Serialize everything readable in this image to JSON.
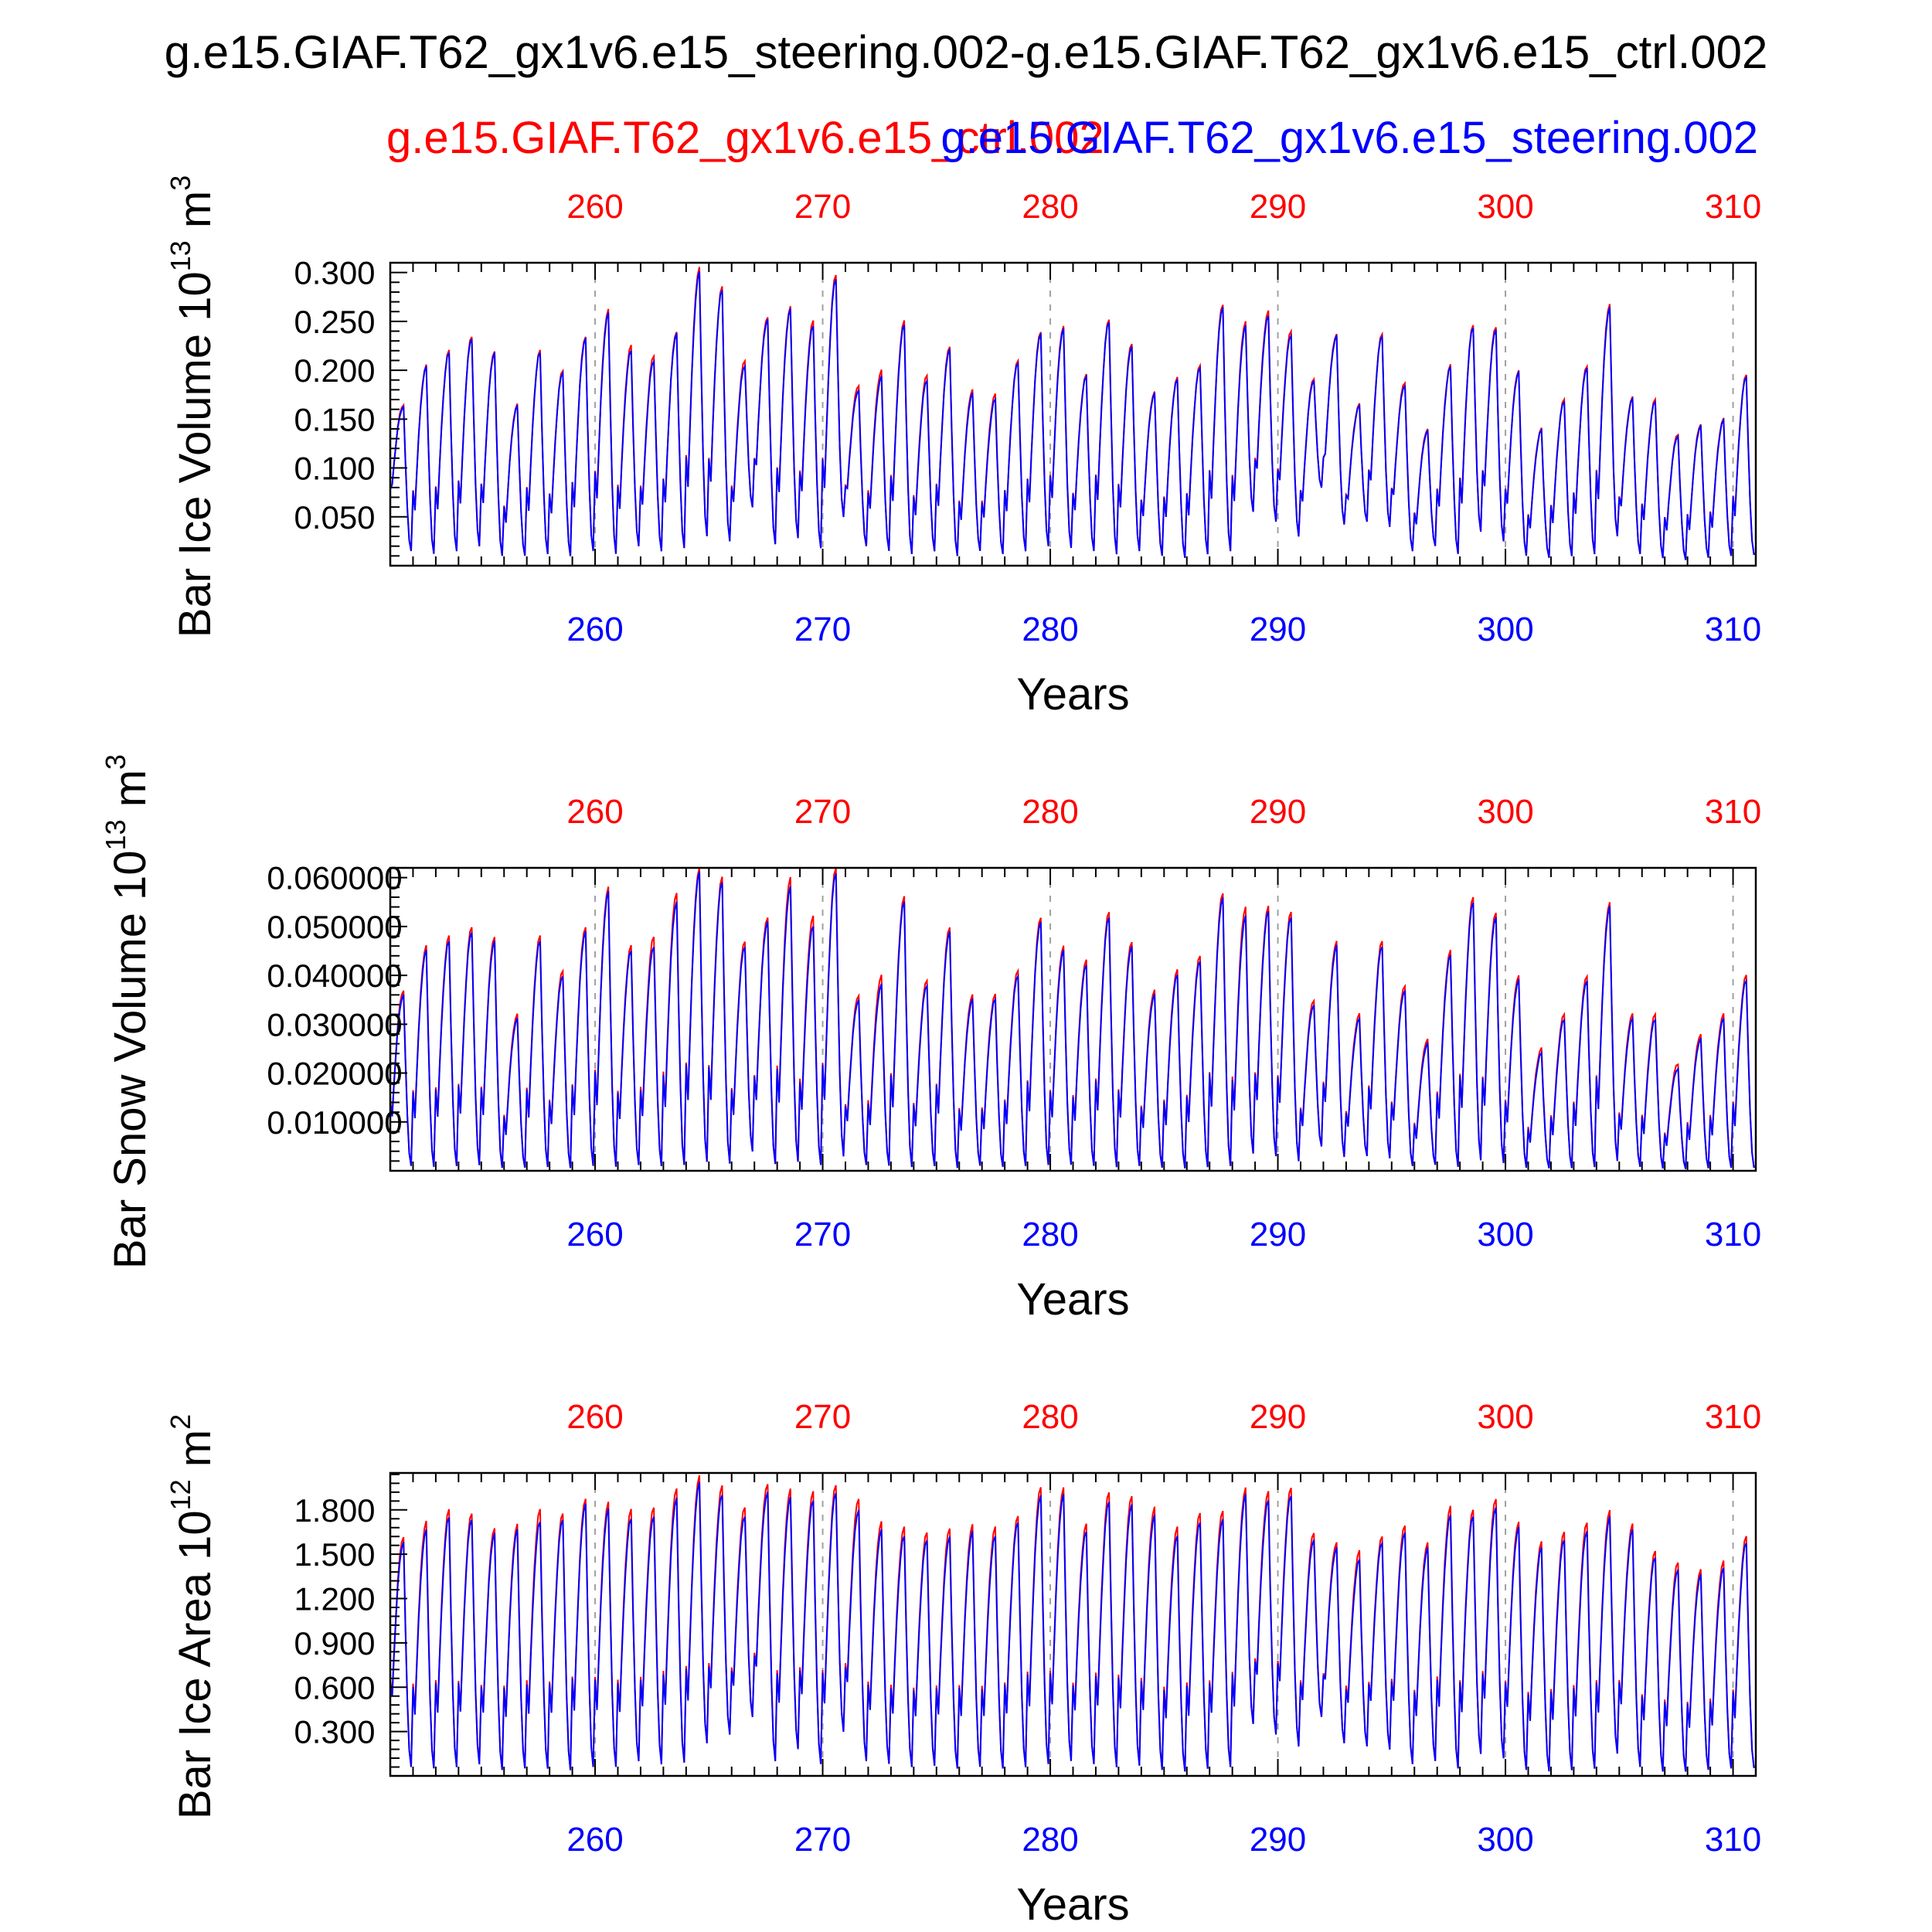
{
  "figure": {
    "title": "g.e15.GIAF.T62_gx1v6.e15_steering.002-g.e15.GIAF.T62_gx1v6.e15_ctrl.002",
    "legend_ctrl": "g.e15.GIAF.T62_gx1v6.e15_ctrl.002",
    "legend_steering": "g.e15.GIAF.T62_gx1v6.e15_steering.002",
    "colors": {
      "ctrl": "#ff0000",
      "steering": "#0000ff",
      "axis": "#000000",
      "grid": "#a0a0a0"
    }
  },
  "chart_data": [
    {
      "type": "line",
      "title": "",
      "xlabel": "Years",
      "ylabel_prefix": "Bar Ice Volume 10",
      "ylabel_exp": "13",
      "ylabel_unit": "m",
      "ylabel_unit_exp": "3",
      "xlim": [
        251,
        311
      ],
      "ylim": [
        0,
        0.31
      ],
      "x_ticks": [
        "260",
        "270",
        "280",
        "290",
        "300",
        "310"
      ],
      "y_ticks": [
        "0.050",
        "0.100",
        "0.150",
        "0.200",
        "0.250",
        "0.300"
      ],
      "x_tick_values": [
        260,
        270,
        280,
        290,
        300,
        310
      ],
      "y_tick_values": [
        0.05,
        0.1,
        0.15,
        0.2,
        0.25,
        0.3
      ],
      "series": [
        {
          "name": "g.e15.GIAF.T62_gx1v6.e15_ctrl.002",
          "color": "#ff0000",
          "annual_max": [
            0.165,
            0.205,
            0.22,
            0.235,
            0.22,
            0.165,
            0.22,
            0.2,
            0.235,
            0.262,
            0.225,
            0.215,
            0.24,
            0.305,
            0.285,
            0.21,
            0.255,
            0.265,
            0.25,
            0.298,
            0.185,
            0.2,
            0.25,
            0.195,
            0.225,
            0.18,
            0.175,
            0.21,
            0.24,
            0.245,
            0.195,
            0.252,
            0.228,
            0.178,
            0.192,
            0.205,
            0.268,
            0.25,
            0.26,
            0.24,
            0.192,
            0.237,
            0.165,
            0.237,
            0.188,
            0.14,
            0.205,
            0.246,
            0.245,
            0.2,
            0.14,
            0.17,
            0.205,
            0.268,
            0.172,
            0.17,
            0.135,
            0.145,
            0.15,
            0.195
          ],
          "annual_min": [
            0.015,
            0.012,
            0.015,
            0.02,
            0.01,
            0.01,
            0.012,
            0.01,
            0.015,
            0.012,
            0.02,
            0.015,
            0.018,
            0.03,
            0.025,
            0.06,
            0.022,
            0.028,
            0.018,
            0.05,
            0.02,
            0.015,
            0.012,
            0.015,
            0.01,
            0.015,
            0.012,
            0.015,
            0.02,
            0.018,
            0.015,
            0.012,
            0.015,
            0.01,
            0.008,
            0.012,
            0.015,
            0.055,
            0.045,
            0.03,
            0.08,
            0.042,
            0.045,
            0.04,
            0.015,
            0.02,
            0.012,
            0.035,
            0.025,
            0.01,
            0.008,
            0.01,
            0.012,
            0.03,
            0.012,
            0.008,
            0.006,
            0.008,
            0.01,
            0.012
          ]
        },
        {
          "name": "g.e15.GIAF.T62_gx1v6.e15_steering.002",
          "color": "#0000ff",
          "annual_max": [
            0.163,
            0.203,
            0.218,
            0.233,
            0.218,
            0.163,
            0.218,
            0.198,
            0.233,
            0.258,
            0.22,
            0.21,
            0.238,
            0.3,
            0.282,
            0.205,
            0.252,
            0.262,
            0.245,
            0.294,
            0.18,
            0.193,
            0.246,
            0.19,
            0.222,
            0.176,
            0.17,
            0.208,
            0.238,
            0.242,
            0.193,
            0.25,
            0.225,
            0.176,
            0.19,
            0.203,
            0.265,
            0.245,
            0.255,
            0.236,
            0.19,
            0.235,
            0.163,
            0.235,
            0.185,
            0.138,
            0.203,
            0.244,
            0.242,
            0.198,
            0.138,
            0.168,
            0.203,
            0.264,
            0.17,
            0.168,
            0.133,
            0.143,
            0.148,
            0.193
          ],
          "annual_min": [
            0.015,
            0.012,
            0.015,
            0.02,
            0.01,
            0.01,
            0.012,
            0.01,
            0.015,
            0.012,
            0.02,
            0.015,
            0.018,
            0.03,
            0.025,
            0.06,
            0.022,
            0.028,
            0.018,
            0.05,
            0.02,
            0.015,
            0.012,
            0.015,
            0.01,
            0.015,
            0.012,
            0.015,
            0.02,
            0.018,
            0.015,
            0.012,
            0.015,
            0.01,
            0.008,
            0.012,
            0.015,
            0.055,
            0.045,
            0.03,
            0.08,
            0.042,
            0.045,
            0.04,
            0.015,
            0.02,
            0.012,
            0.035,
            0.025,
            0.01,
            0.008,
            0.01,
            0.012,
            0.03,
            0.012,
            0.008,
            0.006,
            0.008,
            0.01,
            0.012
          ]
        }
      ]
    },
    {
      "type": "line",
      "title": "",
      "xlabel": "Years",
      "ylabel_prefix": "Bar Snow Volume 10",
      "ylabel_exp": "13",
      "ylabel_unit": "m",
      "ylabel_unit_exp": "3",
      "xlim": [
        251,
        311
      ],
      "ylim": [
        0,
        0.062
      ],
      "x_ticks": [
        "260",
        "270",
        "280",
        "290",
        "300",
        "310"
      ],
      "y_ticks": [
        "0.010000",
        "0.020000",
        "0.030000",
        "0.040000",
        "0.050000",
        "0.060000"
      ],
      "x_tick_values": [
        260,
        270,
        280,
        290,
        300,
        310
      ],
      "y_tick_values": [
        0.01,
        0.02,
        0.03,
        0.04,
        0.05,
        0.06
      ],
      "series": [
        {
          "name": "g.e15.GIAF.T62_gx1v6.e15_ctrl.002",
          "color": "#ff0000",
          "annual_max": [
            0.037,
            0.046,
            0.048,
            0.05,
            0.048,
            0.032,
            0.048,
            0.041,
            0.05,
            0.058,
            0.046,
            0.048,
            0.057,
            0.062,
            0.06,
            0.047,
            0.052,
            0.06,
            0.052,
            0.062,
            0.036,
            0.04,
            0.056,
            0.039,
            0.05,
            0.036,
            0.036,
            0.041,
            0.052,
            0.046,
            0.043,
            0.053,
            0.047,
            0.037,
            0.041,
            0.044,
            0.057,
            0.054,
            0.054,
            0.053,
            0.035,
            0.047,
            0.032,
            0.047,
            0.038,
            0.027,
            0.045,
            0.056,
            0.053,
            0.04,
            0.025,
            0.032,
            0.04,
            0.055,
            0.032,
            0.032,
            0.022,
            0.028,
            0.032,
            0.04
          ],
          "annual_min": [
            0.001,
            0.0008,
            0.001,
            0.0012,
            0.0006,
            0.0006,
            0.0008,
            0.0006,
            0.001,
            0.0008,
            0.0012,
            0.001,
            0.0012,
            0.0018,
            0.0015,
            0.004,
            0.0014,
            0.0018,
            0.0012,
            0.003,
            0.0012,
            0.001,
            0.0008,
            0.001,
            0.0006,
            0.001,
            0.0008,
            0.001,
            0.0012,
            0.0012,
            0.001,
            0.0008,
            0.001,
            0.0006,
            0.0005,
            0.0008,
            0.001,
            0.0035,
            0.003,
            0.002,
            0.005,
            0.0028,
            0.003,
            0.0026,
            0.001,
            0.0012,
            0.0008,
            0.0022,
            0.0016,
            0.0006,
            0.0005,
            0.0006,
            0.0008,
            0.002,
            0.0008,
            0.0005,
            0.0004,
            0.0005,
            0.0006,
            0.0008
          ]
        },
        {
          "name": "g.e15.GIAF.T62_gx1v6.e15_steering.002",
          "color": "#0000ff",
          "annual_max": [
            0.036,
            0.045,
            0.047,
            0.049,
            0.047,
            0.031,
            0.047,
            0.04,
            0.049,
            0.057,
            0.045,
            0.046,
            0.055,
            0.061,
            0.059,
            0.046,
            0.051,
            0.058,
            0.05,
            0.061,
            0.035,
            0.038,
            0.055,
            0.038,
            0.049,
            0.035,
            0.035,
            0.04,
            0.051,
            0.045,
            0.042,
            0.052,
            0.046,
            0.036,
            0.04,
            0.043,
            0.056,
            0.052,
            0.053,
            0.052,
            0.034,
            0.046,
            0.031,
            0.046,
            0.037,
            0.026,
            0.044,
            0.055,
            0.052,
            0.039,
            0.024,
            0.031,
            0.039,
            0.054,
            0.031,
            0.031,
            0.021,
            0.027,
            0.031,
            0.039
          ],
          "annual_min": [
            0.001,
            0.0008,
            0.001,
            0.0012,
            0.0006,
            0.0006,
            0.0008,
            0.0006,
            0.001,
            0.0008,
            0.0012,
            0.001,
            0.0012,
            0.0018,
            0.0015,
            0.004,
            0.0014,
            0.0018,
            0.0012,
            0.003,
            0.0012,
            0.001,
            0.0008,
            0.001,
            0.0006,
            0.001,
            0.0008,
            0.001,
            0.0012,
            0.0012,
            0.001,
            0.0008,
            0.001,
            0.0006,
            0.0005,
            0.0008,
            0.001,
            0.0035,
            0.003,
            0.002,
            0.005,
            0.0028,
            0.003,
            0.0026,
            0.001,
            0.0012,
            0.0008,
            0.0022,
            0.0016,
            0.0006,
            0.0005,
            0.0006,
            0.0008,
            0.002,
            0.0008,
            0.0005,
            0.0004,
            0.0005,
            0.0006,
            0.0008
          ]
        }
      ]
    },
    {
      "type": "line",
      "title": "",
      "xlabel": "Years",
      "ylabel_prefix": "Bar Ice Area 10",
      "ylabel_exp": "12",
      "ylabel_unit": "m",
      "ylabel_unit_exp": "2",
      "xlim": [
        251,
        311
      ],
      "ylim": [
        0,
        2.05
      ],
      "x_ticks": [
        "260",
        "270",
        "280",
        "290",
        "300",
        "310"
      ],
      "y_ticks": [
        "0.300",
        "0.600",
        "0.900",
        "1.200",
        "1.500",
        "1.800"
      ],
      "x_tick_values": [
        260,
        270,
        280,
        290,
        300,
        310
      ],
      "y_tick_values": [
        0.3,
        0.6,
        0.9,
        1.2,
        1.5,
        1.8
      ],
      "series": [
        {
          "name": "g.e15.GIAF.T62_gx1v6.e15_ctrl.002",
          "color": "#ff0000",
          "annual_max": [
            1.62,
            1.72,
            1.8,
            1.78,
            1.68,
            1.7,
            1.8,
            1.78,
            1.88,
            1.85,
            1.8,
            1.82,
            1.95,
            2.03,
            1.96,
            1.82,
            1.98,
            1.94,
            1.92,
            1.97,
            1.88,
            1.72,
            1.68,
            1.65,
            1.68,
            1.7,
            1.68,
            1.76,
            1.96,
            1.95,
            1.7,
            1.92,
            1.9,
            1.82,
            1.68,
            1.78,
            1.8,
            1.95,
            1.92,
            1.95,
            1.65,
            1.58,
            1.52,
            1.62,
            1.7,
            1.58,
            1.82,
            1.8,
            1.88,
            1.72,
            1.58,
            1.65,
            1.72,
            1.8,
            1.7,
            1.52,
            1.45,
            1.4,
            1.45,
            1.62
          ],
          "annual_min": [
            0.06,
            0.05,
            0.06,
            0.08,
            0.04,
            0.05,
            0.05,
            0.04,
            0.06,
            0.06,
            0.1,
            0.08,
            0.09,
            0.22,
            0.28,
            0.4,
            0.1,
            0.18,
            0.08,
            0.3,
            0.1,
            0.08,
            0.06,
            0.07,
            0.05,
            0.06,
            0.05,
            0.06,
            0.08,
            0.1,
            0.08,
            0.06,
            0.07,
            0.04,
            0.03,
            0.05,
            0.06,
            0.35,
            0.28,
            0.2,
            0.4,
            0.22,
            0.2,
            0.18,
            0.08,
            0.1,
            0.05,
            0.15,
            0.12,
            0.04,
            0.03,
            0.04,
            0.05,
            0.15,
            0.06,
            0.03,
            0.03,
            0.04,
            0.05,
            0.06
          ]
        },
        {
          "name": "g.e15.GIAF.T62_gx1v6.e15_steering.002",
          "color": "#0000ff",
          "annual_max": [
            1.58,
            1.66,
            1.75,
            1.74,
            1.64,
            1.66,
            1.72,
            1.74,
            1.84,
            1.8,
            1.74,
            1.76,
            1.88,
            1.98,
            1.9,
            1.76,
            1.92,
            1.88,
            1.86,
            1.92,
            1.8,
            1.66,
            1.62,
            1.6,
            1.62,
            1.65,
            1.62,
            1.72,
            1.9,
            1.9,
            1.65,
            1.86,
            1.84,
            1.76,
            1.62,
            1.72,
            1.74,
            1.9,
            1.86,
            1.9,
            1.6,
            1.54,
            1.46,
            1.58,
            1.65,
            1.54,
            1.76,
            1.76,
            1.82,
            1.68,
            1.54,
            1.6,
            1.66,
            1.75,
            1.66,
            1.48,
            1.4,
            1.36,
            1.4,
            1.58
          ],
          "annual_min": [
            0.06,
            0.05,
            0.06,
            0.08,
            0.04,
            0.05,
            0.05,
            0.04,
            0.06,
            0.06,
            0.1,
            0.08,
            0.09,
            0.22,
            0.28,
            0.4,
            0.1,
            0.18,
            0.08,
            0.3,
            0.1,
            0.08,
            0.06,
            0.07,
            0.05,
            0.06,
            0.05,
            0.06,
            0.08,
            0.1,
            0.08,
            0.06,
            0.07,
            0.04,
            0.03,
            0.05,
            0.06,
            0.35,
            0.28,
            0.2,
            0.4,
            0.22,
            0.2,
            0.18,
            0.08,
            0.1,
            0.05,
            0.15,
            0.12,
            0.04,
            0.03,
            0.04,
            0.05,
            0.15,
            0.06,
            0.03,
            0.03,
            0.04,
            0.05,
            0.06
          ]
        }
      ]
    }
  ]
}
